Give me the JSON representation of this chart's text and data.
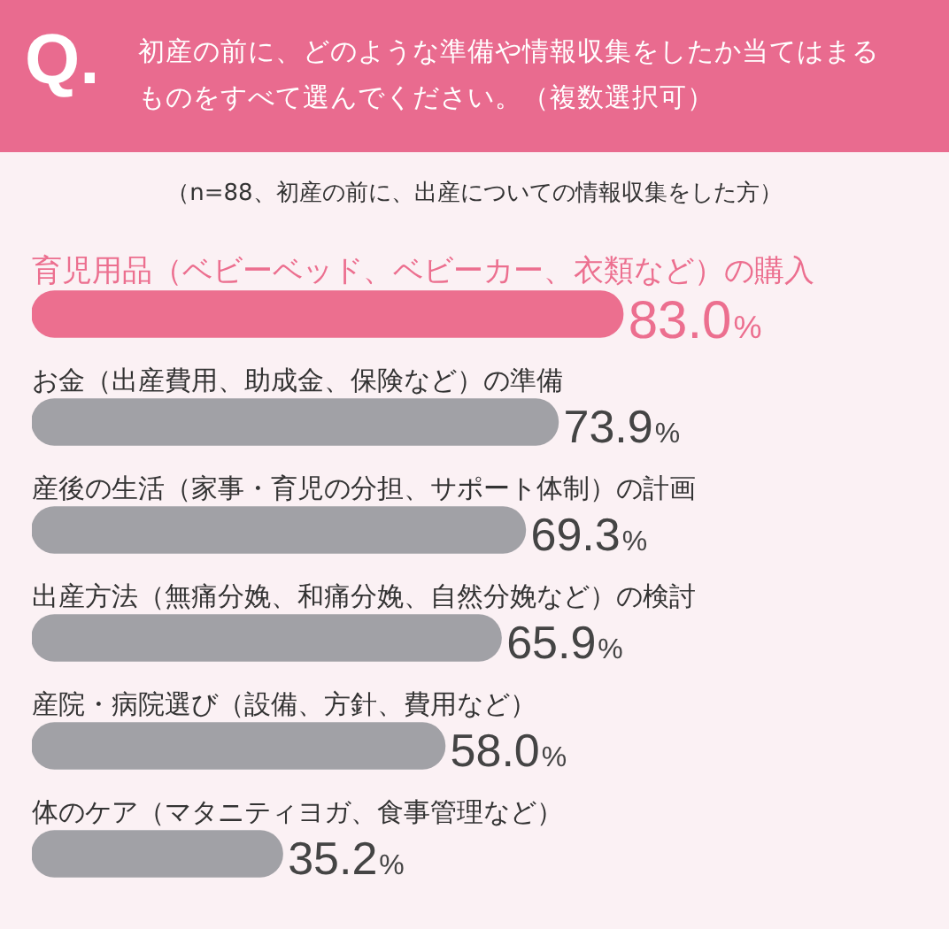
{
  "chart_data": {
    "type": "bar",
    "orientation": "horizontal",
    "title": "初産の前に、どのような準備や情報収集をしたか当てはまるものをすべて選んでください。（複数選択可）",
    "subtitle": "（n=88、初産の前に、出産についての情報収集をした方）",
    "annotations": [
      "Q."
    ],
    "categories": [
      "育児用品（ベビーベッド、ベビーカー、衣類など）の購入",
      "お金（出産費用、助成金、保険など）の準備",
      "産後の生活（家事・育児の分担、サポート体制）の計画",
      "出産方法（無痛分娩、和痛分娩、自然分娩など）の検討",
      "産院・病院選び（設備、方針、費用など）",
      "体のケア（マタニティヨガ、食事管理など）"
    ],
    "values": [
      83.0,
      73.9,
      69.3,
      65.9,
      58.0,
      35.2
    ],
    "value_labels": [
      "83.0%",
      "73.9%",
      "69.3%",
      "65.9%",
      "58.0%",
      "35.2%"
    ],
    "colors": [
      "#ec6f8f",
      "#a1a1a6",
      "#a1a1a6",
      "#a1a1a6",
      "#a1a1a6",
      "#a1a1a6"
    ],
    "legend": false
  }
}
